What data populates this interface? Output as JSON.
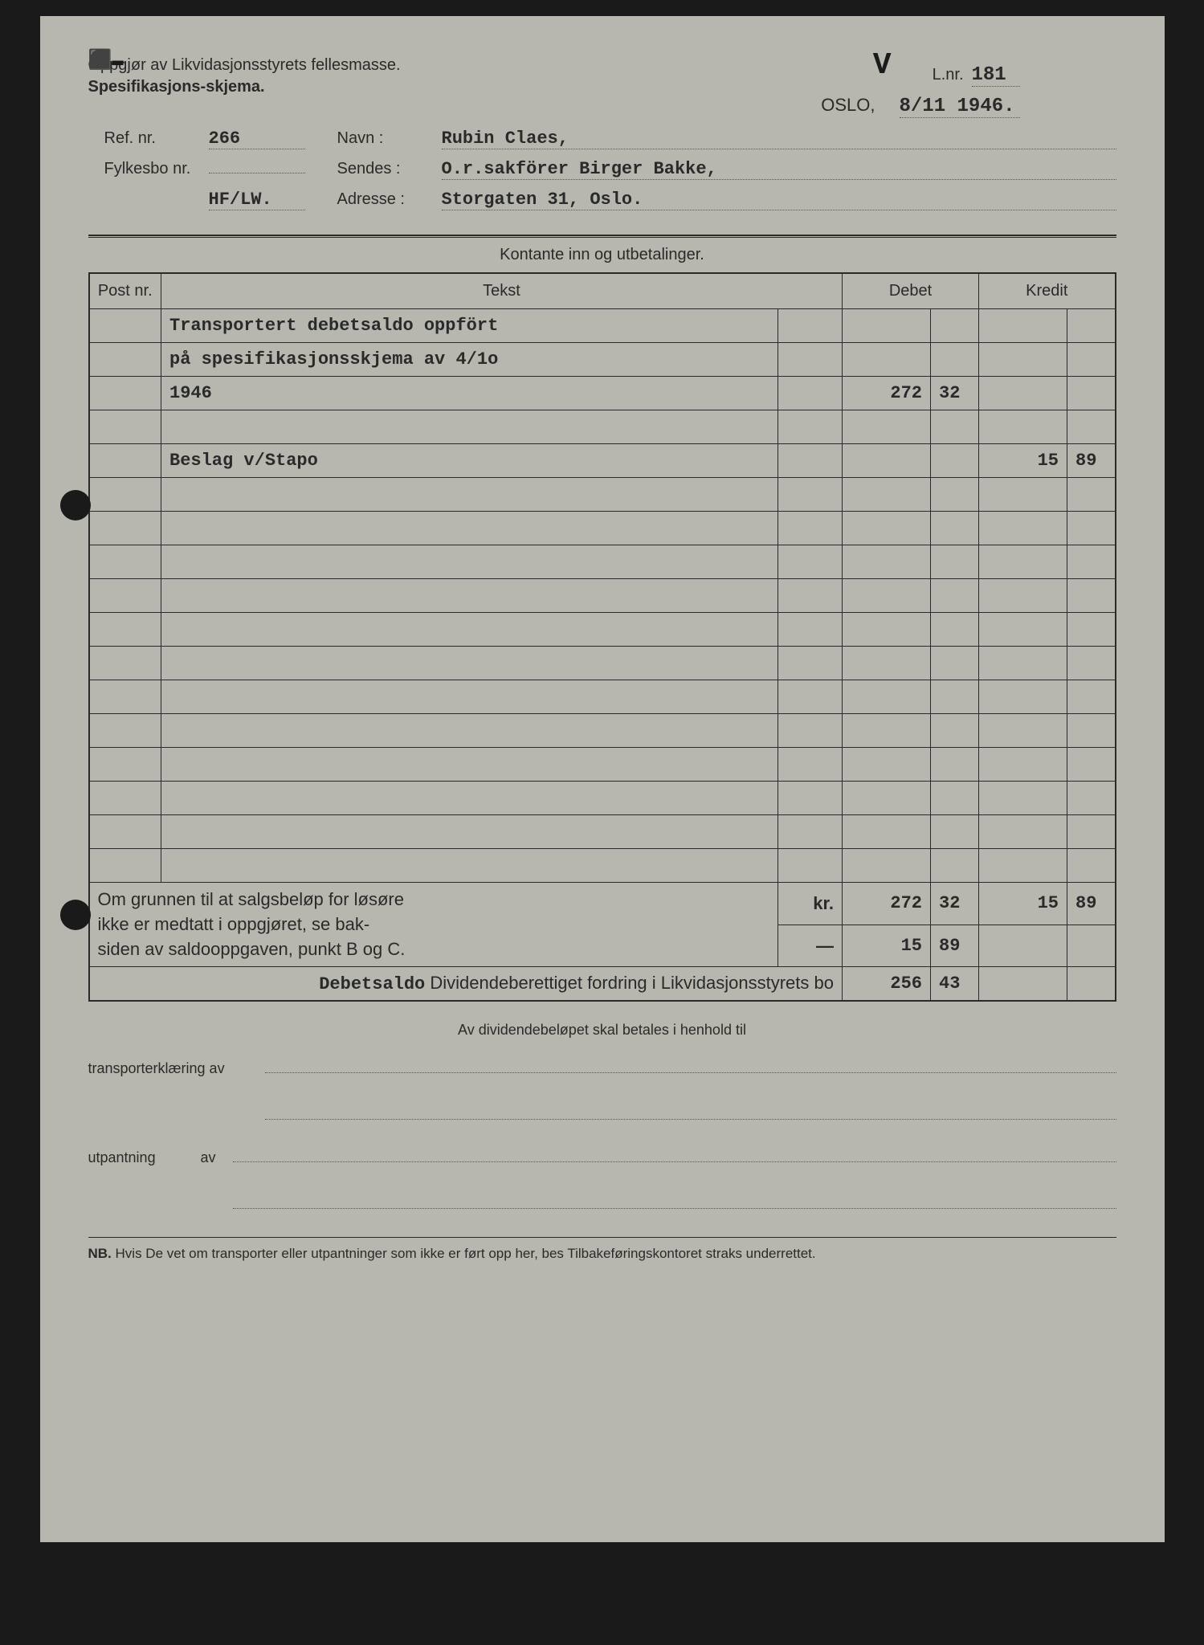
{
  "header": {
    "title1": "Oppgjør av Likvidasjonsstyrets fellesmasse.",
    "title2": "Spesifikasjons-skjema.",
    "checkmark": "V",
    "lnr_label": "L.nr.",
    "lnr_value": "181",
    "city": "OSLO,",
    "date": "8/11 1946."
  },
  "info": {
    "ref_label": "Ref. nr.",
    "ref_value": "266",
    "navn_label": "Navn :",
    "navn_value": "Rubin Claes,",
    "fylkesbo_label": "Fylkesbo nr.",
    "fylkesbo_value": "",
    "sendes_label": "Sendes :",
    "sendes_value": "O.r.sakförer Birger Bakke,",
    "code": "HF/LW.",
    "adresse_label": "Adresse :",
    "adresse_value": "Storgaten 31, Oslo."
  },
  "table": {
    "title": "Kontante inn og utbetalinger.",
    "headers": {
      "post": "Post nr.",
      "tekst": "Tekst",
      "debet": "Debet",
      "kredit": "Kredit"
    },
    "rows": [
      {
        "tekst": "Transportert debetsaldo oppfört",
        "debet_main": "",
        "debet_cents": "",
        "kredit_main": "",
        "kredit_cents": ""
      },
      {
        "tekst": "på spesifikasjonsskjema av 4/1o",
        "debet_main": "",
        "debet_cents": "",
        "kredit_main": "",
        "kredit_cents": ""
      },
      {
        "tekst": "1946",
        "debet_main": "272",
        "debet_cents": "32",
        "kredit_main": "",
        "kredit_cents": ""
      },
      {
        "tekst": "",
        "debet_main": "",
        "debet_cents": "",
        "kredit_main": "",
        "kredit_cents": ""
      },
      {
        "tekst": "Beslag v/Stapo",
        "debet_main": "",
        "debet_cents": "",
        "kredit_main": "15",
        "kredit_cents": "89"
      },
      {
        "tekst": "",
        "debet_main": "",
        "debet_cents": "",
        "kredit_main": "",
        "kredit_cents": ""
      },
      {
        "tekst": "",
        "debet_main": "",
        "debet_cents": "",
        "kredit_main": "",
        "kredit_cents": ""
      },
      {
        "tekst": "",
        "debet_main": "",
        "debet_cents": "",
        "kredit_main": "",
        "kredit_cents": ""
      },
      {
        "tekst": "",
        "debet_main": "",
        "debet_cents": "",
        "kredit_main": "",
        "kredit_cents": ""
      },
      {
        "tekst": "",
        "debet_main": "",
        "debet_cents": "",
        "kredit_main": "",
        "kredit_cents": ""
      },
      {
        "tekst": "",
        "debet_main": "",
        "debet_cents": "",
        "kredit_main": "",
        "kredit_cents": ""
      },
      {
        "tekst": "",
        "debet_main": "",
        "debet_cents": "",
        "kredit_main": "",
        "kredit_cents": ""
      },
      {
        "tekst": "",
        "debet_main": "",
        "debet_cents": "",
        "kredit_main": "",
        "kredit_cents": ""
      },
      {
        "tekst": "",
        "debet_main": "",
        "debet_cents": "",
        "kredit_main": "",
        "kredit_cents": ""
      },
      {
        "tekst": "",
        "debet_main": "",
        "debet_cents": "",
        "kredit_main": "",
        "kredit_cents": ""
      },
      {
        "tekst": "",
        "debet_main": "",
        "debet_cents": "",
        "kredit_main": "",
        "kredit_cents": ""
      },
      {
        "tekst": "",
        "debet_main": "",
        "debet_cents": "",
        "kredit_main": "",
        "kredit_cents": ""
      }
    ],
    "footer_note": {
      "line1": "Om grunnen til at salgsbeløp for løsøre",
      "line2": "ikke er medtatt i oppgjøret, se bak-",
      "line3": "siden av saldooppgaven, punkt B og C.",
      "typed": "Debetsaldo"
    },
    "totals": {
      "kr_label": "kr.",
      "row1": {
        "debet_main": "272",
        "debet_cents": "32",
        "kredit_main": "15",
        "kredit_cents": "89"
      },
      "dash": "—",
      "row2": {
        "debet_main": "15",
        "debet_cents": "89",
        "kredit_main": "",
        "kredit_cents": ""
      },
      "dividende_label": "Dividendeberettiget fordring i Likvidasjonsstyrets bo",
      "row3": {
        "debet_main": "256",
        "debet_cents": "43",
        "kredit_main": "",
        "kredit_cents": ""
      }
    }
  },
  "bottom": {
    "center_text": "Av dividendebeløpet skal betales i henhold til",
    "transport_label": "transporterklæring av",
    "utpantning_label": "utpantning",
    "av": "av"
  },
  "nb": {
    "label": "NB.",
    "text": "Hvis De vet om transporter eller utpantninger som ikke er ført opp her, bes Tilbakeføringskontoret straks underrettet."
  },
  "styling": {
    "background_color": "#b8b7af",
    "text_color": "#2a2a2a",
    "border_color": "#2a2a2a"
  }
}
